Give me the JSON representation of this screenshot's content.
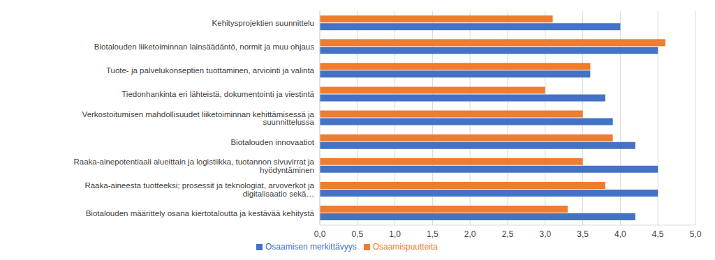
{
  "chart_data": {
    "type": "bar",
    "orientation": "horizontal",
    "categories": [
      "Kehitysprojektien suunnittelu",
      "Biotalouden liiketoiminnan lainsäädäntö, normit ja muu ohjaus",
      "Tuote- ja palvelukonseptien tuottaminen, arviointi ja valinta",
      "Tiedonhankinta eri lähteistä, dokumentointi ja viestintä",
      "Verkostoitumisen mahdollisuudet liiketoiminnan kehittämisessä ja suunnittelussa",
      "Biotalouden innovaatiot",
      "Raaka-ainepotentiaali alueittain ja logistiikka, tuotannon sivuvirrat ja hyödyntäminen",
      "Raaka-aineesta tuotteeksi; prosessit ja teknologiat, arvoverkot ja digitalisaatio sekä…",
      "Biotalouden määrittely osana kiertotaloutta ja kestävää kehitystä"
    ],
    "series": [
      {
        "name": "Osaamispuutteita",
        "color": "#ed7d31",
        "values": [
          3.1,
          4.6,
          3.6,
          3.0,
          3.5,
          3.9,
          3.5,
          3.8,
          3.3
        ]
      },
      {
        "name": "Osaamisen merkittävyys",
        "color": "#4472c4",
        "values": [
          4.0,
          4.5,
          3.6,
          3.8,
          3.9,
          4.2,
          4.5,
          4.5,
          4.2
        ]
      }
    ],
    "xlim": [
      0,
      5
    ],
    "xticks": [
      {
        "value": 0,
        "label": "0,0"
      },
      {
        "value": 0.5,
        "label": "0,5"
      },
      {
        "value": 1,
        "label": "1,0"
      },
      {
        "value": 1.5,
        "label": "1,5"
      },
      {
        "value": 2,
        "label": "2,0"
      },
      {
        "value": 2.5,
        "label": "2,5"
      },
      {
        "value": 3,
        "label": "3,0"
      },
      {
        "value": 3.5,
        "label": "3,5"
      },
      {
        "value": 4,
        "label": "4,0"
      },
      {
        "value": 4.5,
        "label": "4,5"
      },
      {
        "value": 5,
        "label": "5,0"
      }
    ],
    "grid": true,
    "legend": "bottom"
  }
}
